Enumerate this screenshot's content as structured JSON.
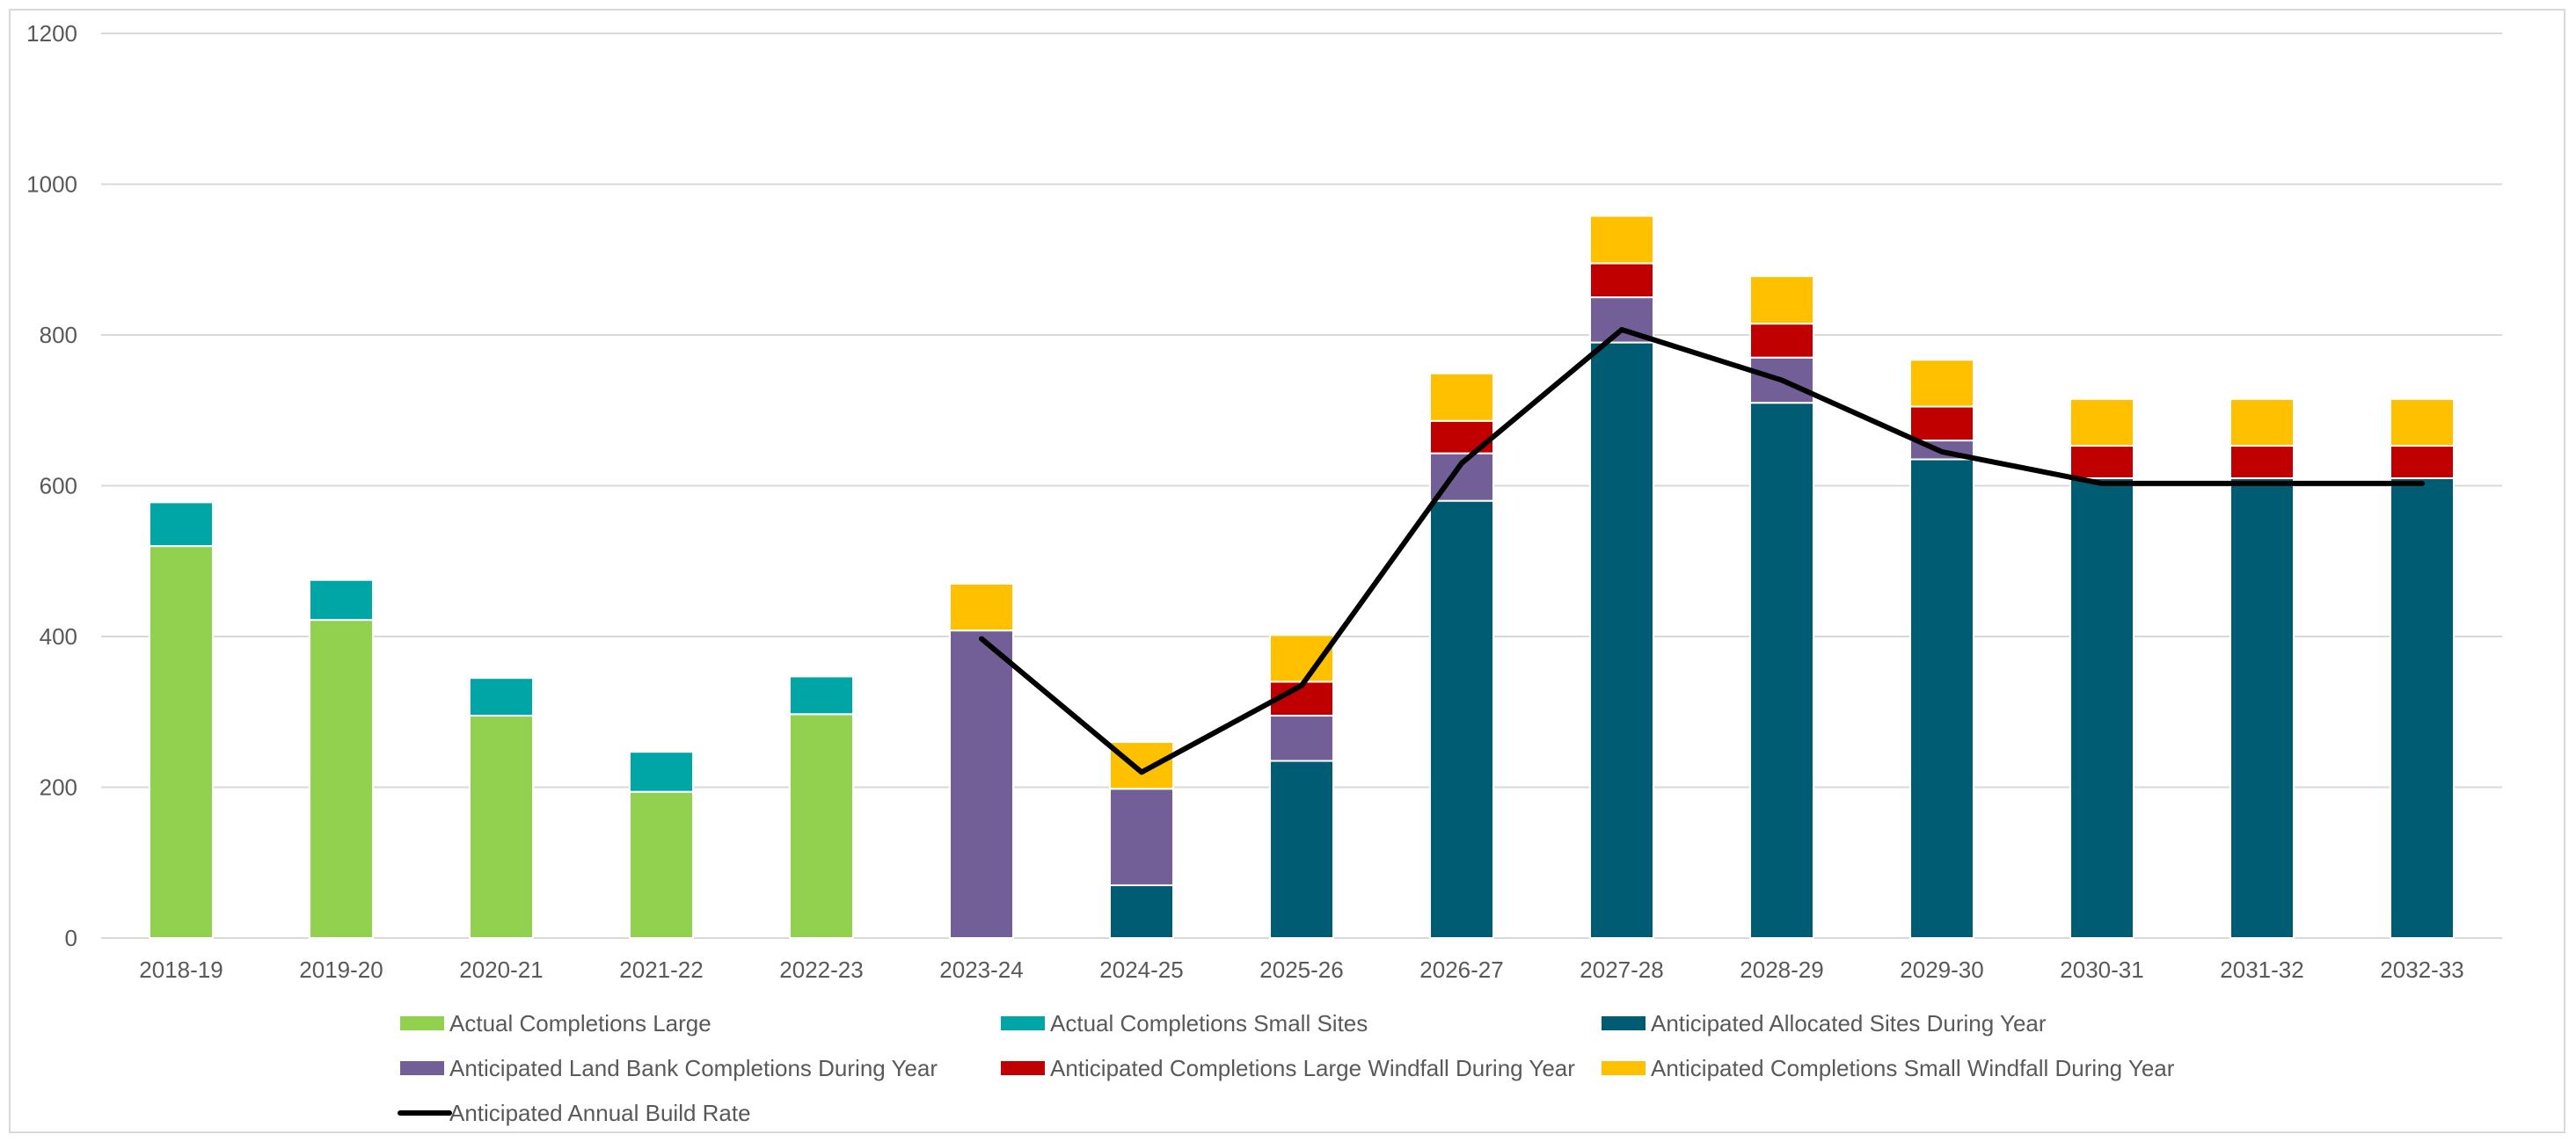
{
  "chart_data": {
    "type": "bar",
    "stacked": true,
    "title": "",
    "xlabel": "",
    "ylabel": "",
    "ylim": [
      0,
      1200
    ],
    "yticks": [
      0,
      200,
      400,
      600,
      800,
      1000,
      1200
    ],
    "grid": true,
    "legend_position": "bottom",
    "categories": [
      "2018-19",
      "2019-20",
      "2020-21",
      "2021-22",
      "2022-23",
      "2023-24",
      "2024-25",
      "2025-26",
      "2026-27",
      "2027-28",
      "2028-29",
      "2029-30",
      "2030-31",
      "2031-32",
      "2032-33"
    ],
    "series": [
      {
        "name": "Actual Completions Large",
        "color": "#92d050",
        "values": [
          520,
          422,
          295,
          194,
          297,
          0,
          0,
          0,
          0,
          0,
          0,
          0,
          0,
          0,
          0
        ]
      },
      {
        "name": "Actual Completions Small Sites",
        "color": "#00a6a6",
        "values": [
          58,
          53,
          50,
          53,
          50,
          0,
          0,
          0,
          0,
          0,
          0,
          0,
          0,
          0,
          0
        ]
      },
      {
        "name": "Anticipated Allocated Sites During Year",
        "color": "#005c73",
        "values": [
          0,
          0,
          0,
          0,
          0,
          0,
          70,
          235,
          580,
          790,
          710,
          635,
          610,
          610,
          610
        ]
      },
      {
        "name": "Anticipated Land Bank Completions During Year",
        "color": "#725f98",
        "values": [
          0,
          0,
          0,
          0,
          0,
          408,
          128,
          60,
          63,
          60,
          60,
          25,
          0,
          0,
          0
        ]
      },
      {
        "name": "Anticipated Completions Large Windfall During Year",
        "color": "#c00000",
        "values": [
          0,
          0,
          0,
          0,
          0,
          0,
          0,
          45,
          43,
          45,
          45,
          45,
          43,
          43,
          43
        ]
      },
      {
        "name": "Anticipated Completions Small Windfall During Year",
        "color": "#ffc000",
        "values": [
          0,
          0,
          0,
          0,
          0,
          62,
          62,
          62,
          63,
          63,
          63,
          62,
          62,
          62,
          62
        ]
      }
    ],
    "line_series": {
      "name": "Anticipated Annual Build Rate",
      "color": "#000000",
      "values": [
        null,
        null,
        null,
        null,
        null,
        397,
        220,
        335,
        630,
        807,
        740,
        645,
        603,
        603,
        603
      ]
    }
  }
}
